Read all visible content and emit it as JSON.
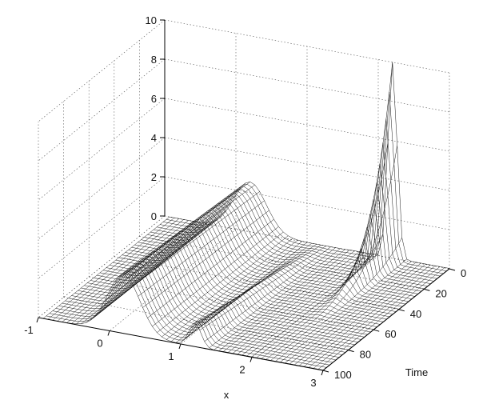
{
  "chart_data": {
    "type": "surface",
    "title": "",
    "xlabel": "x",
    "ylabel": "Time",
    "zlabel": "",
    "xlim": [
      -1,
      3
    ],
    "ylim": [
      0,
      100
    ],
    "zlim": [
      0,
      10
    ],
    "xticks": [
      "-1",
      "0",
      "1",
      "2",
      "3"
    ],
    "yticks": [
      "0",
      "20",
      "40",
      "60",
      "80",
      "100"
    ],
    "zticks": [
      "0",
      "2",
      "4",
      "6",
      "8",
      "10"
    ],
    "grid": true,
    "mesh_color": "#000000",
    "face_color": "#ffffff",
    "surface": {
      "description_points": [
        {
          "x": -1,
          "time": 100,
          "z": 0
        },
        {
          "x": 0.2,
          "time": 100,
          "z": 3
        },
        {
          "x": 0.9,
          "time": 100,
          "z": 0.3
        },
        {
          "x": 1.2,
          "time": 100,
          "z": 1.2
        },
        {
          "x": 1.6,
          "time": 100,
          "z": 0
        },
        {
          "x": 2.2,
          "time": 0,
          "z": 10
        },
        {
          "x": 3,
          "time": 0,
          "z": 0
        }
      ]
    }
  }
}
